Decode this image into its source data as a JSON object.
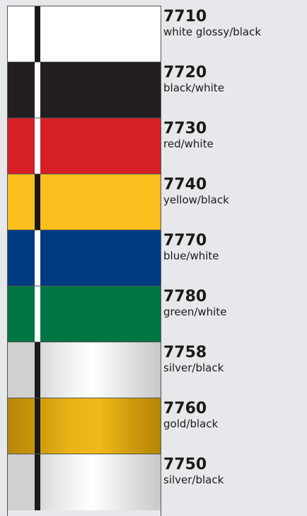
{
  "items": [
    {
      "code": "7710",
      "name": "white glossy/black"
    },
    {
      "code": "7720",
      "name": "black/white"
    },
    {
      "code": "7730",
      "name": "red/white"
    },
    {
      "code": "7740",
      "name": "yellow/black"
    },
    {
      "code": "7770",
      "name": "blue/white"
    },
    {
      "code": "7780",
      "name": "green/white"
    },
    {
      "code": "7758",
      "name": "silver/black"
    },
    {
      "code": "7760",
      "name": "gold/black"
    },
    {
      "code": "7750",
      "name": "silver/black"
    }
  ]
}
